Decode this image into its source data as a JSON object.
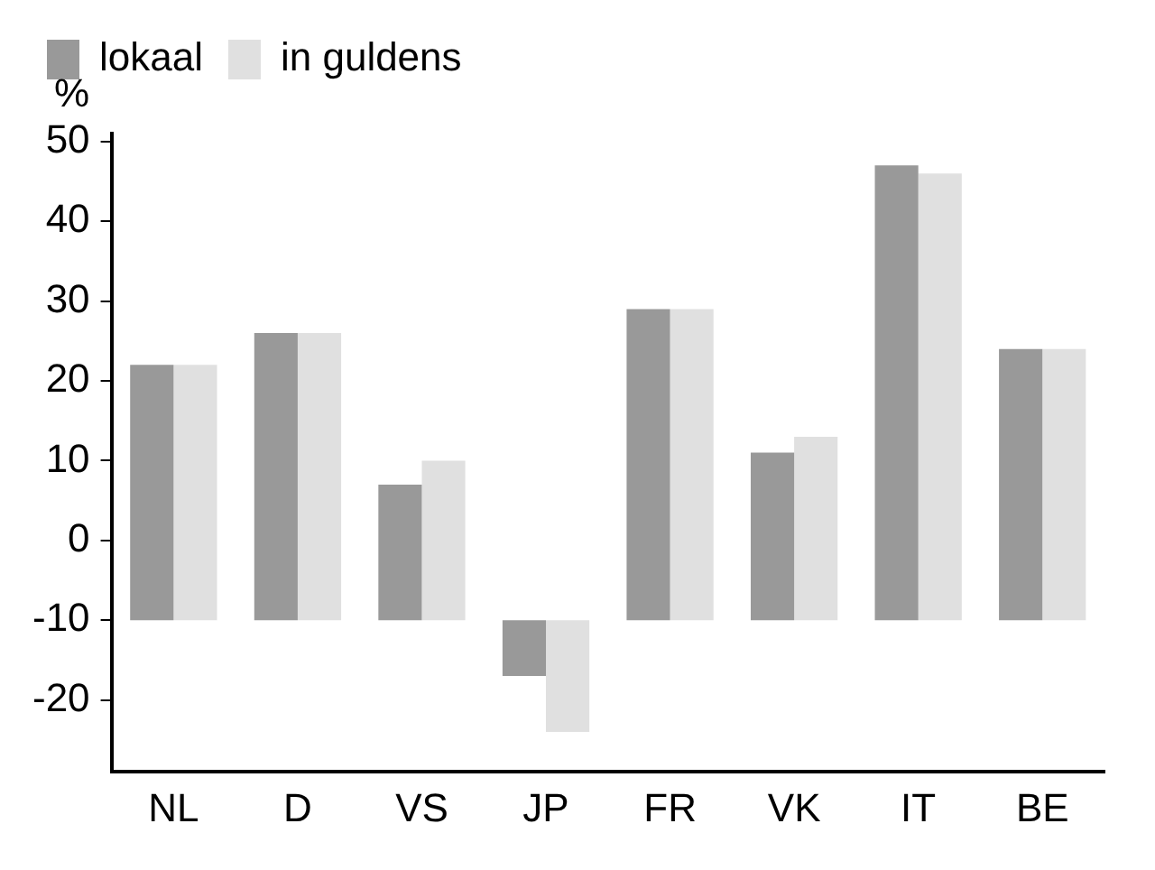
{
  "chart_data": {
    "type": "bar",
    "ylabel": "%",
    "categories": [
      "NL",
      "D",
      "VS",
      "JP",
      "FR",
      "VK",
      "IT",
      "BE"
    ],
    "series": [
      {
        "name": "lokaal",
        "color": "#999999",
        "base": [
          -10,
          -10,
          -10,
          -10,
          -10,
          -10,
          -10,
          -10
        ],
        "values": [
          32,
          36,
          17,
          -7,
          39,
          21,
          57,
          34
        ]
      },
      {
        "name": "in guldens",
        "color": "#e0e0e0",
        "base": [
          -10,
          -10,
          -10,
          -10,
          -10,
          -10,
          -10,
          -10
        ],
        "values": [
          32,
          36,
          20,
          -14,
          39,
          23,
          56,
          34
        ]
      }
    ],
    "ylim": [
      -29,
      51
    ],
    "yticks": [
      -20,
      -10,
      0,
      10,
      20,
      30,
      40,
      50
    ],
    "grid": false,
    "legend": "top left"
  }
}
